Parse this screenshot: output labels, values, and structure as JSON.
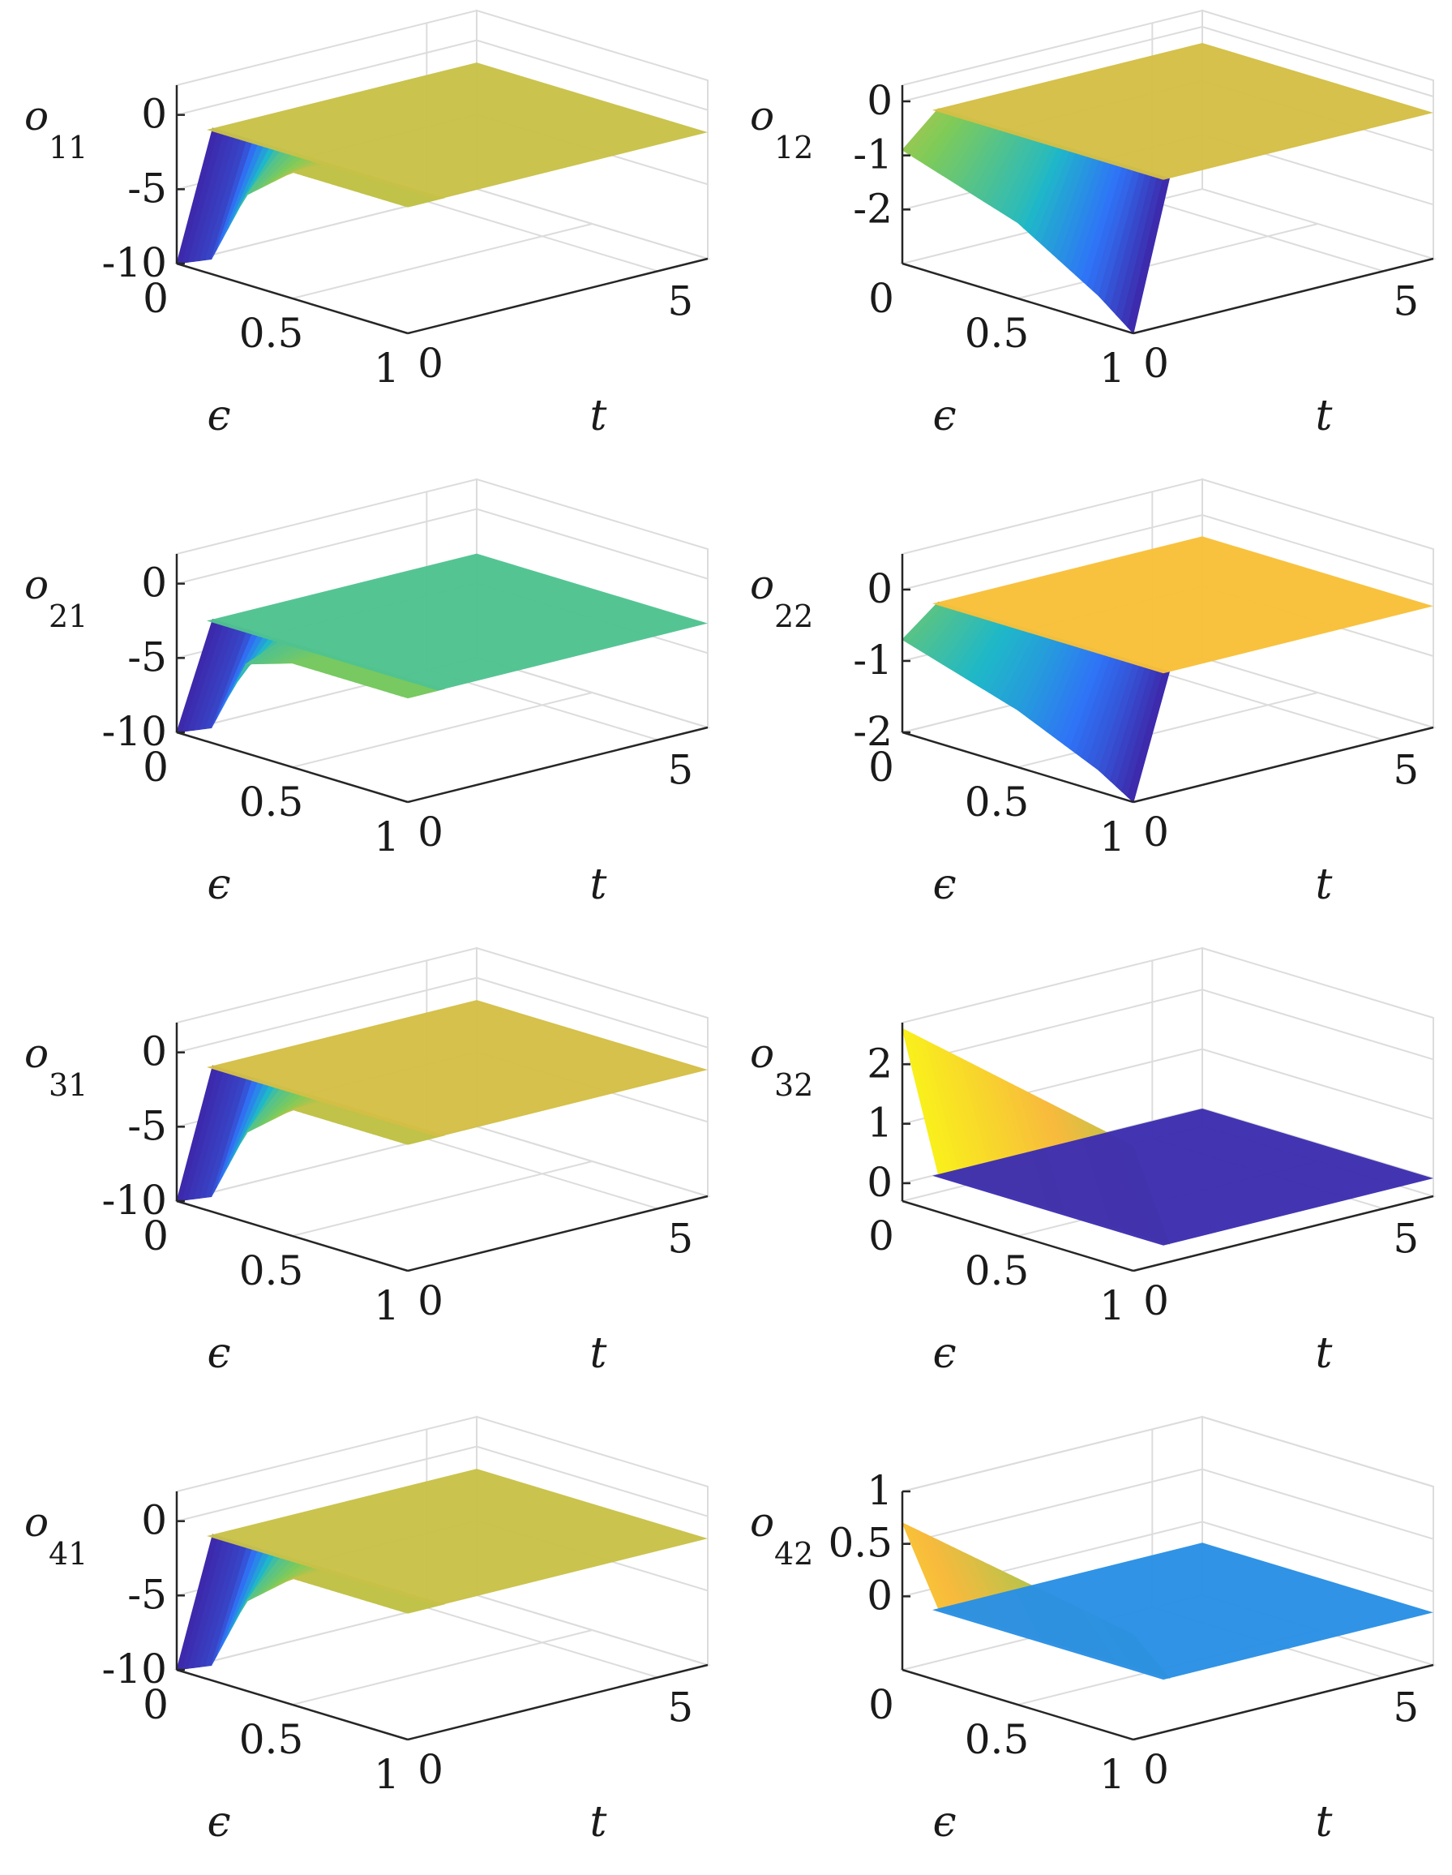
{
  "colors": {
    "colormap": [
      "#3e26a8",
      "#2f74f7",
      "#1fb8c8",
      "#80cb58",
      "#f8ba3d",
      "#f9fb15"
    ],
    "grid": "#dcdcdc",
    "axis": "#262626"
  },
  "chart_data": [
    {
      "type": "surface",
      "zlabel": "o",
      "zlabel_sub": "11",
      "xlabel": "ϵ",
      "ylabel": "t",
      "x_ticks": [
        "0",
        "0.5",
        "1"
      ],
      "y_ticks": [
        "0",
        "5"
      ],
      "z_ticks": [
        {
          "v": 0,
          "label": "0"
        },
        {
          "v": -5,
          "label": "-5"
        },
        {
          "v": -10,
          "label": "-10"
        }
      ],
      "xlim": [
        0,
        1
      ],
      "ylim": [
        0,
        6
      ],
      "zlim": [
        -10,
        2
      ],
      "grid": true,
      "plateau": -1.5,
      "plateau_color": 0.72,
      "profile": [
        [
          0,
          -10
        ],
        [
          0.15,
          -9
        ],
        [
          0.3,
          -4
        ],
        [
          0.5,
          -1.5
        ],
        [
          1,
          -1.5
        ]
      ]
    },
    {
      "type": "surface",
      "zlabel": "o",
      "zlabel_sub": "12",
      "xlabel": "ϵ",
      "ylabel": "t",
      "x_ticks": [
        "0",
        "0.5",
        "1"
      ],
      "y_ticks": [
        "0",
        "5"
      ],
      "z_ticks": [
        {
          "v": 0,
          "label": "0"
        },
        {
          "v": -1,
          "label": "-1"
        },
        {
          "v": -2,
          "label": "-2"
        }
      ],
      "xlim": [
        0,
        1
      ],
      "ylim": [
        0,
        6
      ],
      "zlim": [
        -3,
        0.3
      ],
      "grid": true,
      "plateau": -0.3,
      "plateau_color": 0.74,
      "profile": [
        [
          0,
          -0.9
        ],
        [
          0.5,
          -1.6
        ],
        [
          0.85,
          -2.5
        ],
        [
          1,
          -3
        ]
      ]
    },
    {
      "type": "surface",
      "zlabel": "o",
      "zlabel_sub": "21",
      "xlabel": "ϵ",
      "ylabel": "t",
      "x_ticks": [
        "0",
        "0.5",
        "1"
      ],
      "y_ticks": [
        "0",
        "5"
      ],
      "z_ticks": [
        {
          "v": 0,
          "label": "0"
        },
        {
          "v": -5,
          "label": "-5"
        },
        {
          "v": -10,
          "label": "-10"
        }
      ],
      "xlim": [
        0,
        1
      ],
      "ylim": [
        0,
        6
      ],
      "zlim": [
        -10,
        2
      ],
      "grid": true,
      "plateau": -3,
      "plateau_color": 0.5,
      "profile": [
        [
          0,
          -10
        ],
        [
          0.15,
          -9
        ],
        [
          0.3,
          -4
        ],
        [
          0.5,
          -3
        ],
        [
          1,
          -3
        ]
      ]
    },
    {
      "type": "surface",
      "zlabel": "o",
      "zlabel_sub": "22",
      "xlabel": "ϵ",
      "ylabel": "t",
      "x_ticks": [
        "0",
        "0.5",
        "1"
      ],
      "y_ticks": [
        "0",
        "5"
      ],
      "z_ticks": [
        {
          "v": 0,
          "label": "0"
        },
        {
          "v": -1,
          "label": "-1"
        },
        {
          "v": -2,
          "label": "-2"
        }
      ],
      "xlim": [
        0,
        1
      ],
      "ylim": [
        0,
        6
      ],
      "zlim": [
        -2,
        0.5
      ],
      "grid": true,
      "plateau": -0.3,
      "plateau_color": 0.82,
      "profile": [
        [
          0,
          -0.7
        ],
        [
          0.5,
          -1.2
        ],
        [
          0.85,
          -1.7
        ],
        [
          1,
          -2
        ]
      ]
    },
    {
      "type": "surface",
      "zlabel": "o",
      "zlabel_sub": "31",
      "xlabel": "ϵ",
      "ylabel": "t",
      "x_ticks": [
        "0",
        "0.5",
        "1"
      ],
      "y_ticks": [
        "0",
        "5"
      ],
      "z_ticks": [
        {
          "v": 0,
          "label": "0"
        },
        {
          "v": -5,
          "label": "-5"
        },
        {
          "v": -10,
          "label": "-10"
        }
      ],
      "xlim": [
        0,
        1
      ],
      "ylim": [
        0,
        6
      ],
      "zlim": [
        -10,
        2
      ],
      "grid": true,
      "plateau": -1.5,
      "plateau_color": 0.74,
      "profile": [
        [
          0,
          -10
        ],
        [
          0.15,
          -9
        ],
        [
          0.3,
          -4
        ],
        [
          0.5,
          -1.5
        ],
        [
          1,
          -1.5
        ]
      ]
    },
    {
      "type": "surface",
      "zlabel": "o",
      "zlabel_sub": "32",
      "xlabel": "ϵ",
      "ylabel": "t",
      "x_ticks": [
        "0",
        "0.5",
        "1"
      ],
      "y_ticks": [
        "0",
        "5"
      ],
      "z_ticks": [
        {
          "v": 2,
          "label": "2"
        },
        {
          "v": 1,
          "label": "1"
        },
        {
          "v": 0,
          "label": "0"
        }
      ],
      "xlim": [
        0,
        1
      ],
      "ylim": [
        0,
        6
      ],
      "zlim": [
        -0.3,
        2.7
      ],
      "grid": true,
      "plateau": 0,
      "plateau_color": 0.02,
      "profile": [
        [
          0,
          2.6
        ],
        [
          0.5,
          2.2
        ],
        [
          1,
          1.8
        ]
      ]
    },
    {
      "type": "surface",
      "zlabel": "o",
      "zlabel_sub": "41",
      "xlabel": "ϵ",
      "ylabel": "t",
      "x_ticks": [
        "0",
        "0.5",
        "1"
      ],
      "y_ticks": [
        "0",
        "5"
      ],
      "z_ticks": [
        {
          "v": 0,
          "label": "0"
        },
        {
          "v": -5,
          "label": "-5"
        },
        {
          "v": -10,
          "label": "-10"
        }
      ],
      "xlim": [
        0,
        1
      ],
      "ylim": [
        0,
        6
      ],
      "zlim": [
        -10,
        2
      ],
      "grid": true,
      "plateau": -1.5,
      "plateau_color": 0.72,
      "profile": [
        [
          0,
          -10
        ],
        [
          0.15,
          -9
        ],
        [
          0.3,
          -4
        ],
        [
          0.5,
          -1.5
        ],
        [
          1,
          -1.5
        ]
      ]
    },
    {
      "type": "surface",
      "zlabel": "o",
      "zlabel_sub": "42",
      "xlabel": "ϵ",
      "ylabel": "t",
      "x_ticks": [
        "0",
        "0.5",
        "1"
      ],
      "y_ticks": [
        "0",
        "5"
      ],
      "z_ticks": [
        {
          "v": 1,
          "label": "1"
        },
        {
          "v": 0.5,
          "label": "0.5"
        },
        {
          "v": 0,
          "label": "0"
        }
      ],
      "xlim": [
        0,
        1
      ],
      "ylim": [
        0,
        6
      ],
      "zlim": [
        -0.7,
        1
      ],
      "grid": true,
      "plateau": -0.2,
      "plateau_color": 0.28,
      "profile": [
        [
          0,
          0.7
        ],
        [
          0.5,
          0.5
        ],
        [
          1,
          0.3
        ]
      ]
    }
  ]
}
